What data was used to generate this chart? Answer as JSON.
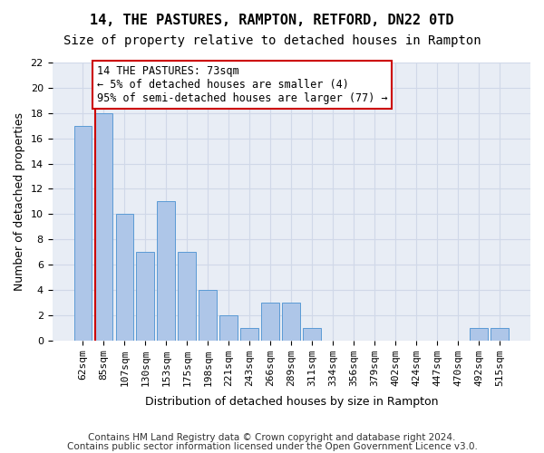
{
  "title": "14, THE PASTURES, RAMPTON, RETFORD, DN22 0TD",
  "subtitle": "Size of property relative to detached houses in Rampton",
  "xlabel": "Distribution of detached houses by size in Rampton",
  "ylabel": "Number of detached properties",
  "footer_line1": "Contains HM Land Registry data © Crown copyright and database right 2024.",
  "footer_line2": "Contains public sector information licensed under the Open Government Licence v3.0.",
  "categories": [
    "62sqm",
    "85sqm",
    "107sqm",
    "130sqm",
    "153sqm",
    "175sqm",
    "198sqm",
    "221sqm",
    "243sqm",
    "266sqm",
    "289sqm",
    "311sqm",
    "334sqm",
    "356sqm",
    "379sqm",
    "402sqm",
    "424sqm",
    "447sqm",
    "470sqm",
    "492sqm",
    "515sqm"
  ],
  "values": [
    17,
    18,
    10,
    7,
    11,
    7,
    4,
    2,
    1,
    3,
    3,
    1,
    0,
    0,
    0,
    0,
    0,
    0,
    0,
    1,
    1
  ],
  "bar_color": "#aec6e8",
  "bar_edge_color": "#5b9bd5",
  "grid_color": "#d0d8e8",
  "background_color": "#e8edf5",
  "annotation_text": "14 THE PASTURES: 73sqm\n← 5% of detached houses are smaller (4)\n95% of semi-detached houses are larger (77) →",
  "annotation_box_edge": "#cc0000",
  "vline_color": "#cc0000",
  "vline_x": 0.58,
  "ylim": [
    0,
    22
  ],
  "yticks": [
    0,
    2,
    4,
    6,
    8,
    10,
    12,
    14,
    16,
    18,
    20,
    22
  ],
  "title_fontsize": 11,
  "subtitle_fontsize": 10,
  "xlabel_fontsize": 9,
  "ylabel_fontsize": 9,
  "tick_fontsize": 8,
  "annotation_fontsize": 8.5,
  "footer_fontsize": 7.5
}
